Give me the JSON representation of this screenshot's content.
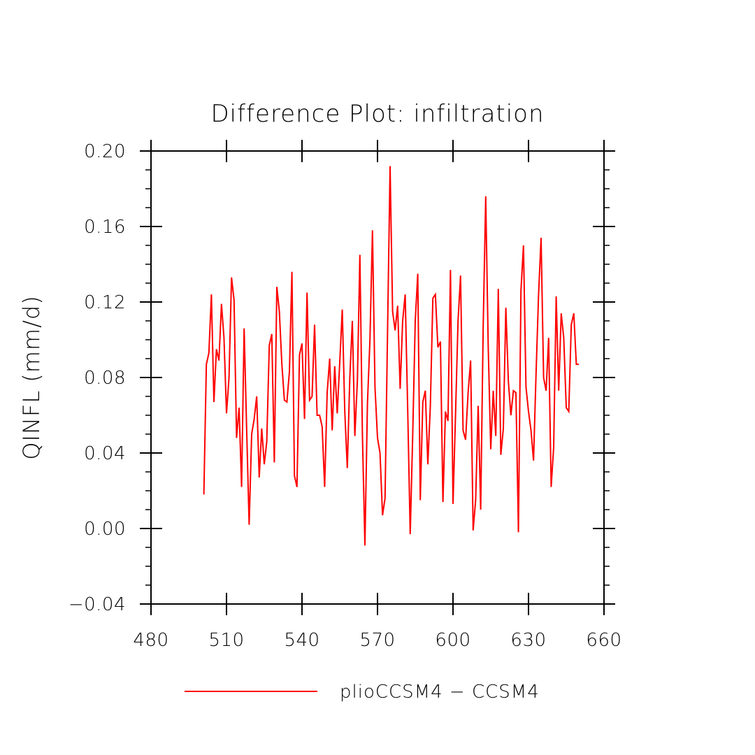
{
  "chart_data": {
    "type": "line",
    "title": "Difference Plot: infiltration",
    "xlabel": "",
    "ylabel": "QINFL   (mm/d)",
    "xlim": [
      480,
      660
    ],
    "ylim": [
      -0.04,
      0.2
    ],
    "xticks": [
      480,
      510,
      540,
      570,
      600,
      630,
      660
    ],
    "xtick_labels": [
      "480",
      "510",
      "540",
      "570",
      "600",
      "630",
      "660"
    ],
    "yticks": [
      -0.04,
      0.0,
      0.04,
      0.08,
      0.12,
      0.16,
      0.2
    ],
    "ytick_labels": [
      "−0.04",
      "0.00",
      "0.04",
      "0.08",
      "0.12",
      "0.16",
      "0.20"
    ],
    "grid": false,
    "legend_position": "bottom",
    "series": [
      {
        "name": "plioCCSM4 − CCSM4",
        "color": "#ff0000",
        "x": [
          501,
          502,
          503,
          504,
          505,
          506,
          507,
          508,
          509,
          510,
          511,
          512,
          513,
          514,
          515,
          516,
          517,
          518,
          519,
          520,
          521,
          522,
          523,
          524,
          525,
          526,
          527,
          528,
          529,
          530,
          531,
          532,
          533,
          534,
          535,
          536,
          537,
          538,
          539,
          540,
          541,
          542,
          543,
          544,
          545,
          546,
          547,
          548,
          549,
          550,
          551,
          552,
          553,
          554,
          555,
          556,
          557,
          558,
          559,
          560,
          561,
          562,
          563,
          564,
          565,
          566,
          567,
          568,
          569,
          570,
          571,
          572,
          573,
          574,
          575,
          576,
          577,
          578,
          579,
          580,
          581,
          582,
          583,
          584,
          585,
          586,
          587,
          588,
          589,
          590,
          591,
          592,
          593,
          594,
          595,
          596,
          597,
          598,
          599,
          600,
          601,
          602,
          603,
          604,
          605,
          606,
          607,
          608,
          609,
          610,
          611,
          612,
          613,
          614,
          615,
          616,
          617,
          618,
          619,
          620,
          621,
          622,
          623,
          624,
          625,
          626,
          627,
          628,
          629,
          630,
          631,
          632,
          633,
          634,
          635,
          636,
          637,
          638,
          639,
          640,
          641,
          642,
          643,
          644,
          645,
          646,
          647,
          648,
          649,
          650
        ],
        "y": [
          0.018,
          0.087,
          0.093,
          0.124,
          0.067,
          0.095,
          0.089,
          0.119,
          0.101,
          0.061,
          0.08,
          0.133,
          0.121,
          0.048,
          0.064,
          0.022,
          0.106,
          0.053,
          0.002,
          0.05,
          0.058,
          0.07,
          0.027,
          0.053,
          0.034,
          0.046,
          0.097,
          0.103,
          0.035,
          0.128,
          0.115,
          0.087,
          0.068,
          0.067,
          0.083,
          0.136,
          0.028,
          0.022,
          0.092,
          0.098,
          0.058,
          0.125,
          0.068,
          0.07,
          0.108,
          0.06,
          0.06,
          0.054,
          0.022,
          0.072,
          0.09,
          0.052,
          0.086,
          0.061,
          0.088,
          0.116,
          0.062,
          0.032,
          0.08,
          0.11,
          0.049,
          0.078,
          0.145,
          0.05,
          -0.009,
          0.066,
          0.1,
          0.158,
          0.075,
          0.048,
          0.04,
          0.007,
          0.016,
          0.105,
          0.192,
          0.115,
          0.105,
          0.118,
          0.074,
          0.11,
          0.124,
          0.063,
          -0.003,
          0.05,
          0.11,
          0.135,
          0.015,
          0.067,
          0.073,
          0.034,
          0.065,
          0.122,
          0.124,
          0.096,
          0.099,
          0.014,
          0.062,
          0.057,
          0.137,
          0.013,
          0.06,
          0.11,
          0.134,
          0.052,
          0.047,
          0.072,
          0.089,
          -0.001,
          0.015,
          0.065,
          0.01,
          0.107,
          0.176,
          0.096,
          0.042,
          0.073,
          0.049,
          0.127,
          0.039,
          0.053,
          0.117,
          0.078,
          0.06,
          0.073,
          0.072,
          -0.002,
          0.126,
          0.15,
          0.075,
          0.062,
          0.052,
          0.036,
          0.082,
          0.124,
          0.154,
          0.08,
          0.073,
          0.101,
          0.022,
          0.043,
          0.123,
          0.073,
          0.114,
          0.101,
          0.064,
          0.062,
          0.108,
          0.114,
          0.087,
          0.087
        ]
      }
    ]
  }
}
